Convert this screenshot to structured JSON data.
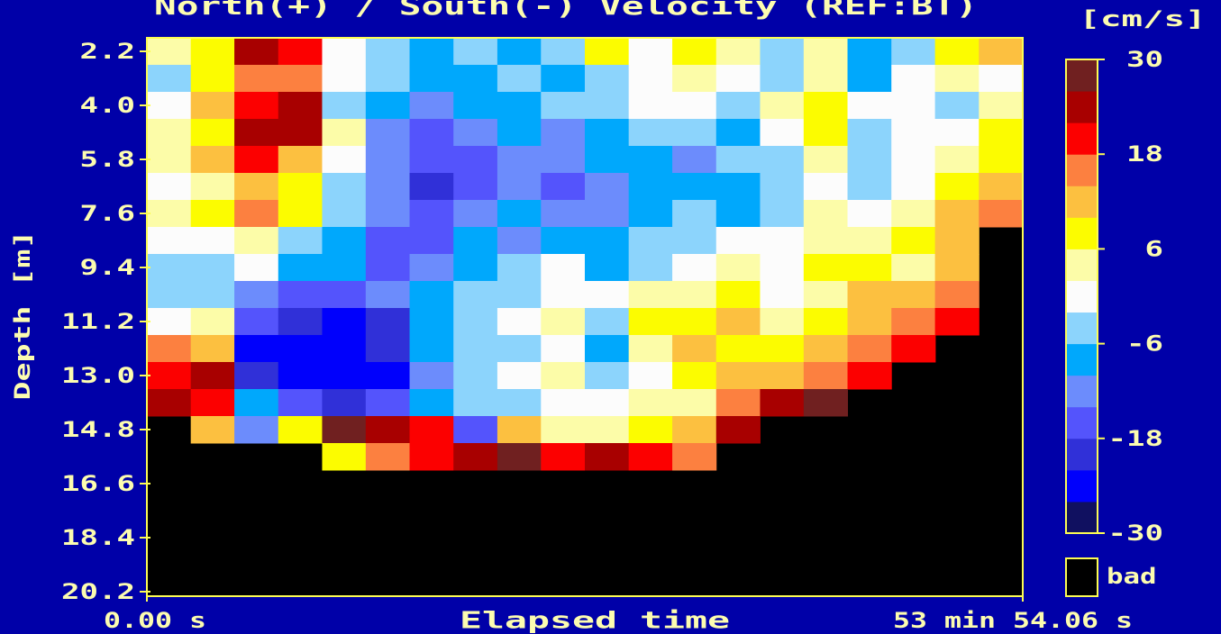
{
  "chart_data": {
    "type": "heatmap",
    "title": "North(+) / South(-) Velocity (REF:BT)",
    "xlabel": "Elapsed time",
    "ylabel": "Depth [m]",
    "xlim": [
      0,
      3234.06
    ],
    "xticks": [
      {
        "value": 0,
        "label": "0.00 s"
      },
      {
        "value": 3234.06,
        "label": "53 min 54.06 s"
      }
    ],
    "ylim": [
      1.75,
      20.35
    ],
    "y_inverted": true,
    "yticks": [
      2.2,
      {
        "value": 4,
        "label": "4.0"
      },
      5.8,
      7.6,
      9.4,
      11.2,
      {
        "value": 13,
        "label": "13.0"
      },
      14.8,
      16.6,
      18.4,
      20.2
    ],
    "x": [
      81,
      243,
      404,
      566,
      728,
      889,
      1051,
      1213,
      1375,
      1536,
      1698,
      1860,
      2021,
      2183,
      2345,
      2506,
      2668,
      2830,
      2991,
      3153
    ],
    "y": [
      2.2,
      3.1,
      4.0,
      4.9,
      5.8,
      6.7,
      7.6,
      8.5,
      9.4,
      10.3,
      11.2,
      12.1,
      13.0,
      13.9,
      14.8,
      15.7
    ],
    "z": [
      [
        2,
        6,
        24,
        18,
        0,
        -4,
        -8,
        -6,
        -10,
        -4,
        6,
        -2,
        8,
        4,
        -6,
        2,
        -8,
        -4,
        8,
        10
      ],
      [
        -4,
        8,
        14,
        16,
        -2,
        -6,
        -10,
        -8,
        -6,
        -8,
        -4,
        0,
        2,
        -2,
        -6,
        4,
        -8,
        -2,
        2,
        0
      ],
      [
        0,
        10,
        20,
        22,
        -4,
        -10,
        -14,
        -10,
        -8,
        -6,
        -4,
        -2,
        0,
        -4,
        2,
        6,
        -2,
        0,
        -4,
        4
      ],
      [
        2,
        8,
        22,
        24,
        4,
        -12,
        -16,
        -12,
        -10,
        -12,
        -8,
        -6,
        -4,
        -8,
        0,
        8,
        -4,
        -2,
        0,
        6
      ],
      [
        4,
        10,
        18,
        12,
        -2,
        -14,
        -18,
        -16,
        -12,
        -14,
        -10,
        -8,
        -12,
        -6,
        -4,
        2,
        -6,
        0,
        4,
        8
      ],
      [
        0,
        4,
        12,
        6,
        -4,
        -12,
        -20,
        -18,
        -14,
        -16,
        -12,
        -10,
        -8,
        -10,
        -6,
        0,
        -4,
        -2,
        6,
        10
      ],
      [
        2,
        6,
        14,
        8,
        -6,
        -14,
        -18,
        -14,
        -10,
        -12,
        -14,
        -8,
        -6,
        -8,
        -4,
        2,
        0,
        4,
        10,
        14
      ],
      [
        -2,
        0,
        4,
        -6,
        -8,
        -16,
        -16,
        -10,
        -12,
        -8,
        -10,
        -6,
        -4,
        -2,
        0,
        4,
        2,
        6,
        12,
        null
      ],
      [
        -4,
        -6,
        -2,
        -8,
        -10,
        -18,
        -12,
        -8,
        -6,
        -2,
        -8,
        -4,
        0,
        2,
        -2,
        6,
        8,
        4,
        10,
        null
      ],
      [
        -6,
        -4,
        -14,
        -18,
        -16,
        -14,
        -10,
        -6,
        -4,
        0,
        -2,
        4,
        2,
        6,
        0,
        4,
        10,
        12,
        16,
        null
      ],
      [
        -2,
        4,
        -18,
        -22,
        -24,
        -20,
        -8,
        -4,
        -2,
        2,
        -6,
        6,
        8,
        10,
        4,
        6,
        12,
        14,
        18,
        null
      ],
      [
        16,
        10,
        -24,
        -26,
        -26,
        -22,
        -10,
        -6,
        -4,
        0,
        -8,
        2,
        10,
        8,
        6,
        10,
        14,
        18,
        null,
        null
      ],
      [
        20,
        22,
        -20,
        -24,
        -26,
        -24,
        -12,
        -6,
        -2,
        4,
        -4,
        0,
        6,
        12,
        10,
        14,
        18,
        null,
        null,
        null
      ],
      [
        24,
        18,
        -8,
        -18,
        -22,
        -18,
        -10,
        -4,
        -6,
        -2,
        0,
        2,
        4,
        14,
        22,
        26,
        null,
        null,
        null,
        null
      ],
      [
        null,
        10,
        -14,
        8,
        26,
        22,
        18,
        -16,
        12,
        4,
        2,
        6,
        10,
        22,
        null,
        null,
        null,
        null,
        null,
        null
      ],
      [
        null,
        null,
        null,
        null,
        6,
        14,
        20,
        22,
        26,
        18,
        24,
        20,
        14,
        null,
        null,
        null,
        null,
        null,
        null,
        null
      ]
    ],
    "colorbar": {
      "label": "[cm/s]",
      "lim": [
        -30,
        30
      ],
      "ticks": [
        30,
        18,
        6,
        -6,
        -18,
        -30
      ],
      "bounds": [
        -30,
        -26,
        -22,
        -18,
        -14,
        -10,
        -6,
        -2,
        2,
        6,
        10,
        14,
        18,
        22,
        26,
        30
      ],
      "colors": [
        "#101060",
        "#0000fc",
        "#3030d8",
        "#5454fc",
        "#6c8cfc",
        "#00a8fc",
        "#8cd4fc",
        "#fcfcfc",
        "#fcfca8",
        "#fcfc00",
        "#fcc040",
        "#fc8040",
        "#fc0000",
        "#a80000",
        "#702020"
      ],
      "bad_label": "bad",
      "bad_color": "#000000"
    }
  }
}
